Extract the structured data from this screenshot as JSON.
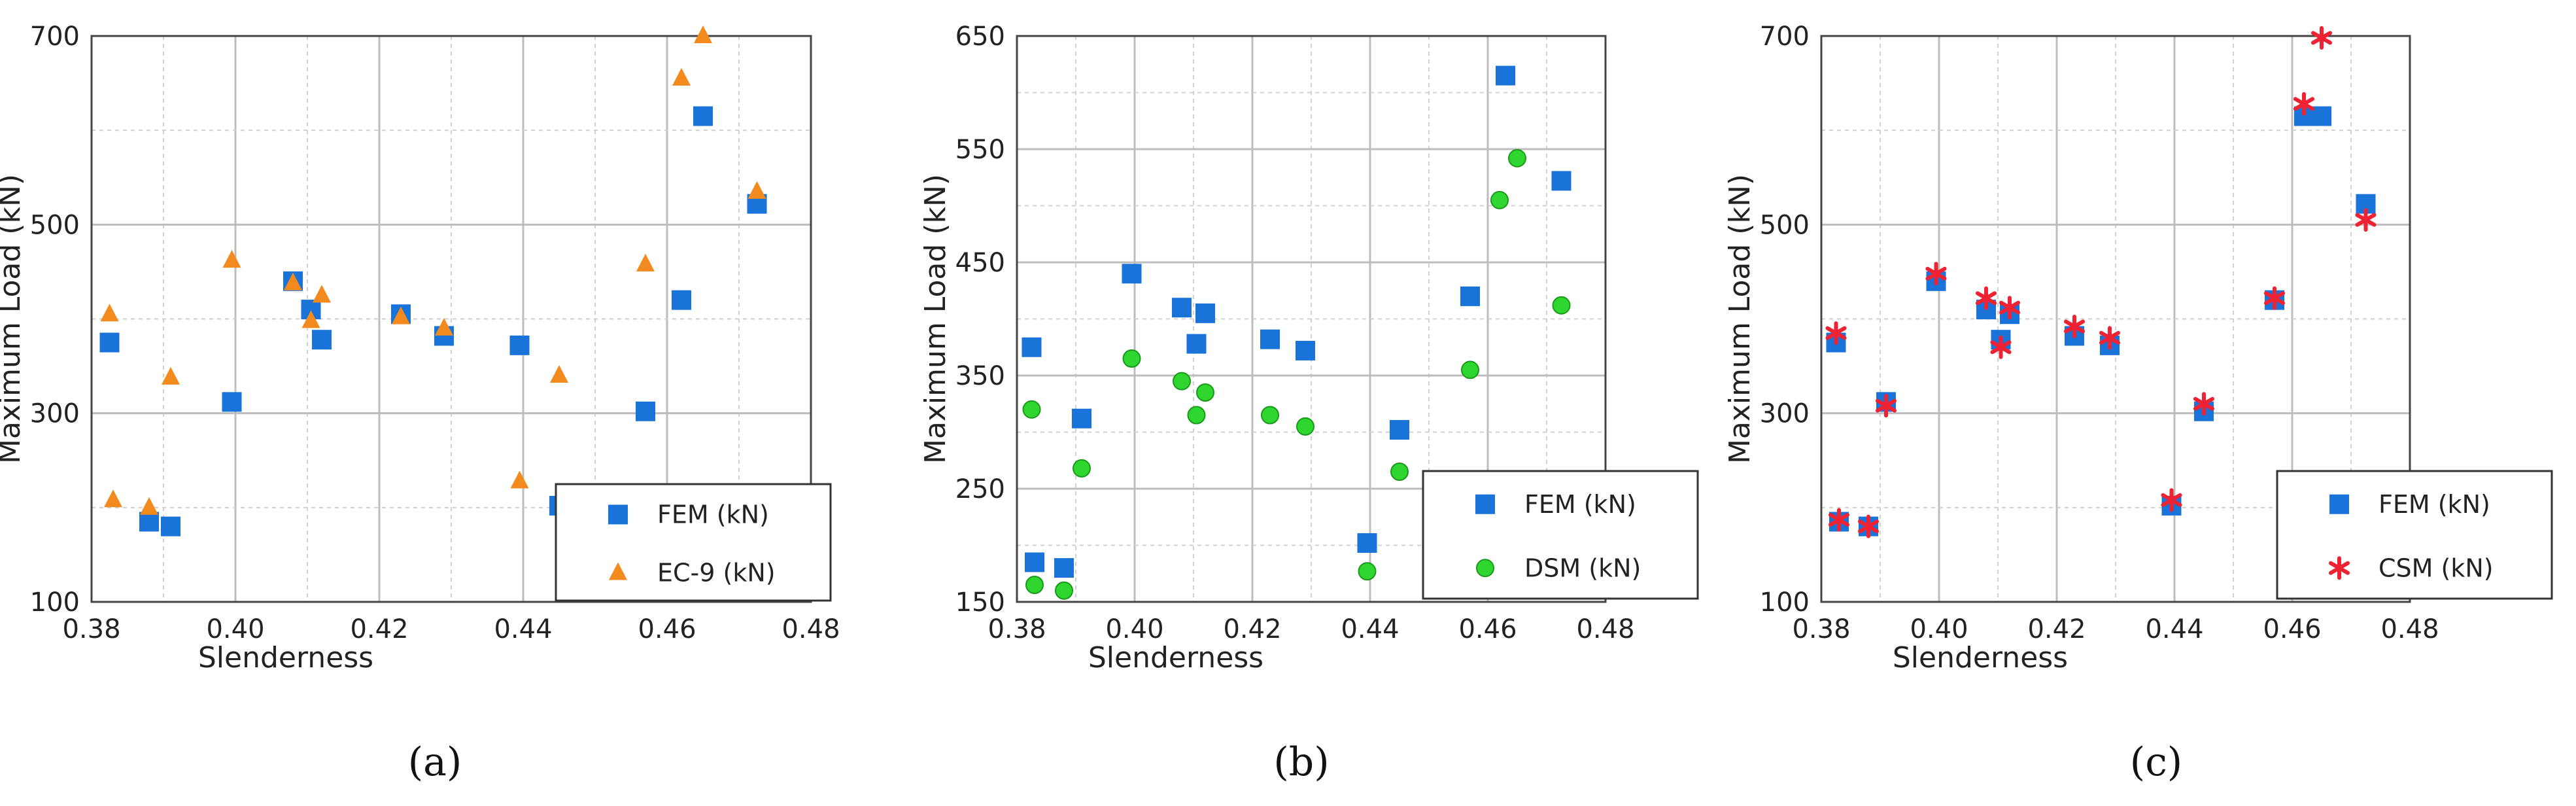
{
  "chart_data": [
    {
      "type": "scatter",
      "caption": "(a)",
      "xlabel": "Slenderness",
      "ylabel": "Maximum Load (kN)",
      "xlim": [
        0.38,
        0.48
      ],
      "ylim": [
        100,
        700
      ],
      "xticks": [
        "0.38",
        "0.40",
        "0.42",
        "0.44",
        "0.46",
        "0.48"
      ],
      "yticks": [
        "100",
        "300",
        "500",
        "700"
      ],
      "grid": true,
      "legend_position": "bottom-right",
      "series": [
        {
          "name": "FEM (kN)",
          "marker": "square",
          "color": "#1a73d9",
          "x": [
            0.3825,
            0.388,
            0.391,
            0.3995,
            0.408,
            0.4105,
            0.412,
            0.423,
            0.429,
            0.4395,
            0.445,
            0.457,
            0.462,
            0.465,
            0.4725
          ],
          "y": [
            375,
            185,
            180,
            312,
            440,
            410,
            378,
            405,
            382,
            372,
            202,
            302,
            420,
            615,
            522
          ]
        },
        {
          "name": "EC-9 (kN)",
          "marker": "triangle",
          "color": "#f28a1e",
          "x": [
            0.3825,
            0.383,
            0.388,
            0.391,
            0.3995,
            0.408,
            0.4105,
            0.412,
            0.423,
            0.429,
            0.4395,
            0.445,
            0.457,
            0.462,
            0.465,
            0.4725
          ],
          "y": [
            405,
            208,
            200,
            338,
            462,
            438,
            398,
            425,
            402,
            390,
            228,
            340,
            458,
            655,
            700,
            535
          ]
        }
      ]
    },
    {
      "type": "scatter",
      "caption": "(b)",
      "xlabel": "Slenderness",
      "ylabel": "Maximum Load (kN)",
      "xlim": [
        0.38,
        0.48
      ],
      "ylim": [
        150,
        650
      ],
      "xticks": [
        "0.38",
        "0.40",
        "0.42",
        "0.44",
        "0.46",
        "0.48"
      ],
      "yticks": [
        "150",
        "250",
        "350",
        "450",
        "550",
        "650"
      ],
      "grid": true,
      "legend_position": "bottom-right",
      "series": [
        {
          "name": "FEM (kN)",
          "marker": "square",
          "color": "#1a73d9",
          "x": [
            0.3825,
            0.383,
            0.388,
            0.391,
            0.3995,
            0.408,
            0.4105,
            0.412,
            0.423,
            0.429,
            0.4395,
            0.445,
            0.457,
            0.463,
            0.4725
          ],
          "y": [
            375,
            185,
            180,
            312,
            440,
            410,
            378,
            405,
            382,
            372,
            202,
            302,
            420,
            615,
            522
          ]
        },
        {
          "name": "DSM (kN)",
          "marker": "circle",
          "color": "#2fd62f",
          "x": [
            0.3825,
            0.383,
            0.388,
            0.391,
            0.3995,
            0.408,
            0.4105,
            0.412,
            0.423,
            0.429,
            0.4395,
            0.445,
            0.457,
            0.462,
            0.465,
            0.4725
          ],
          "y": [
            320,
            165,
            160,
            268,
            365,
            345,
            315,
            335,
            315,
            305,
            177,
            265,
            355,
            505,
            542,
            412
          ]
        }
      ]
    },
    {
      "type": "scatter",
      "caption": "(c)",
      "xlabel": "Slenderness",
      "ylabel": "Maximum Load (kN)",
      "xlim": [
        0.38,
        0.48
      ],
      "ylim": [
        100,
        700
      ],
      "xticks": [
        "0.38",
        "0.40",
        "0.42",
        "0.44",
        "0.46",
        "0.48"
      ],
      "yticks": [
        "100",
        "300",
        "500",
        "700"
      ],
      "grid": true,
      "legend_position": "bottom-right",
      "series": [
        {
          "name": "FEM (kN)",
          "marker": "square",
          "color": "#1a73d9",
          "x": [
            0.3825,
            0.383,
            0.388,
            0.391,
            0.3995,
            0.408,
            0.4105,
            0.412,
            0.423,
            0.429,
            0.4395,
            0.445,
            0.457,
            0.462,
            0.465,
            0.4725
          ],
          "y": [
            375,
            185,
            180,
            312,
            440,
            410,
            378,
            405,
            382,
            372,
            202,
            302,
            420,
            615,
            615,
            522
          ]
        },
        {
          "name": "CSM (kN)",
          "marker": "asterisk",
          "color": "#ee2233",
          "x": [
            0.3825,
            0.383,
            0.388,
            0.391,
            0.3995,
            0.408,
            0.4105,
            0.412,
            0.423,
            0.429,
            0.4395,
            0.445,
            0.457,
            0.462,
            0.465,
            0.4725
          ],
          "y": [
            385,
            187,
            180,
            308,
            448,
            422,
            370,
            412,
            392,
            380,
            208,
            310,
            422,
            628,
            698,
            505
          ]
        }
      ]
    }
  ]
}
